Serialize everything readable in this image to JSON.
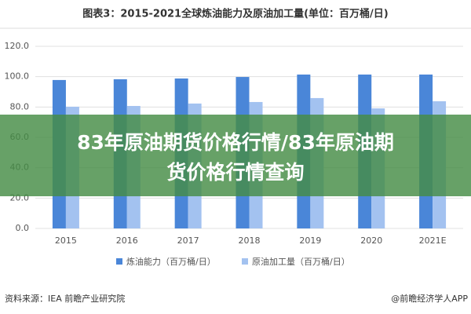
{
  "chart_data": {
    "type": "bar",
    "title": "图表3：2015-2021全球炼油能力及原油加工量(单位：百万桶/日)",
    "categories": [
      "2015",
      "2016",
      "2017",
      "2018",
      "2019",
      "2020",
      "2021E"
    ],
    "series": [
      {
        "name": "炼油能力（百万桶/日）",
        "color": "#4a86d8",
        "values": [
          97.8,
          98.3,
          98.8,
          99.8,
          101.4,
          101.4,
          101.4
        ]
      },
      {
        "name": "原油加工量（百万桶/日）",
        "color": "#a3c2f0",
        "values": [
          80.2,
          80.7,
          82.3,
          83.3,
          85.9,
          79.1,
          83.8
        ]
      }
    ],
    "ylim": [
      0,
      120
    ],
    "yticks": [
      {
        "value": 0,
        "label": "0.0"
      },
      {
        "value": 20,
        "label": "20.0"
      },
      {
        "value": 40,
        "label": "40.0"
      },
      {
        "value": 60,
        "label": "60.0"
      },
      {
        "value": 80,
        "label": "80.0"
      },
      {
        "value": 100,
        "label": "100.0"
      },
      {
        "value": 120,
        "label": "120.0"
      }
    ],
    "grid": true,
    "legend": "bottom",
    "source": "资料来源：IEA 前瞻产业研究院",
    "credit": "@前瞻经济学人APP"
  },
  "overlay": {
    "lines": [
      "83年原油期货价格行情/83年原油期",
      "货价格行情查询"
    ]
  }
}
